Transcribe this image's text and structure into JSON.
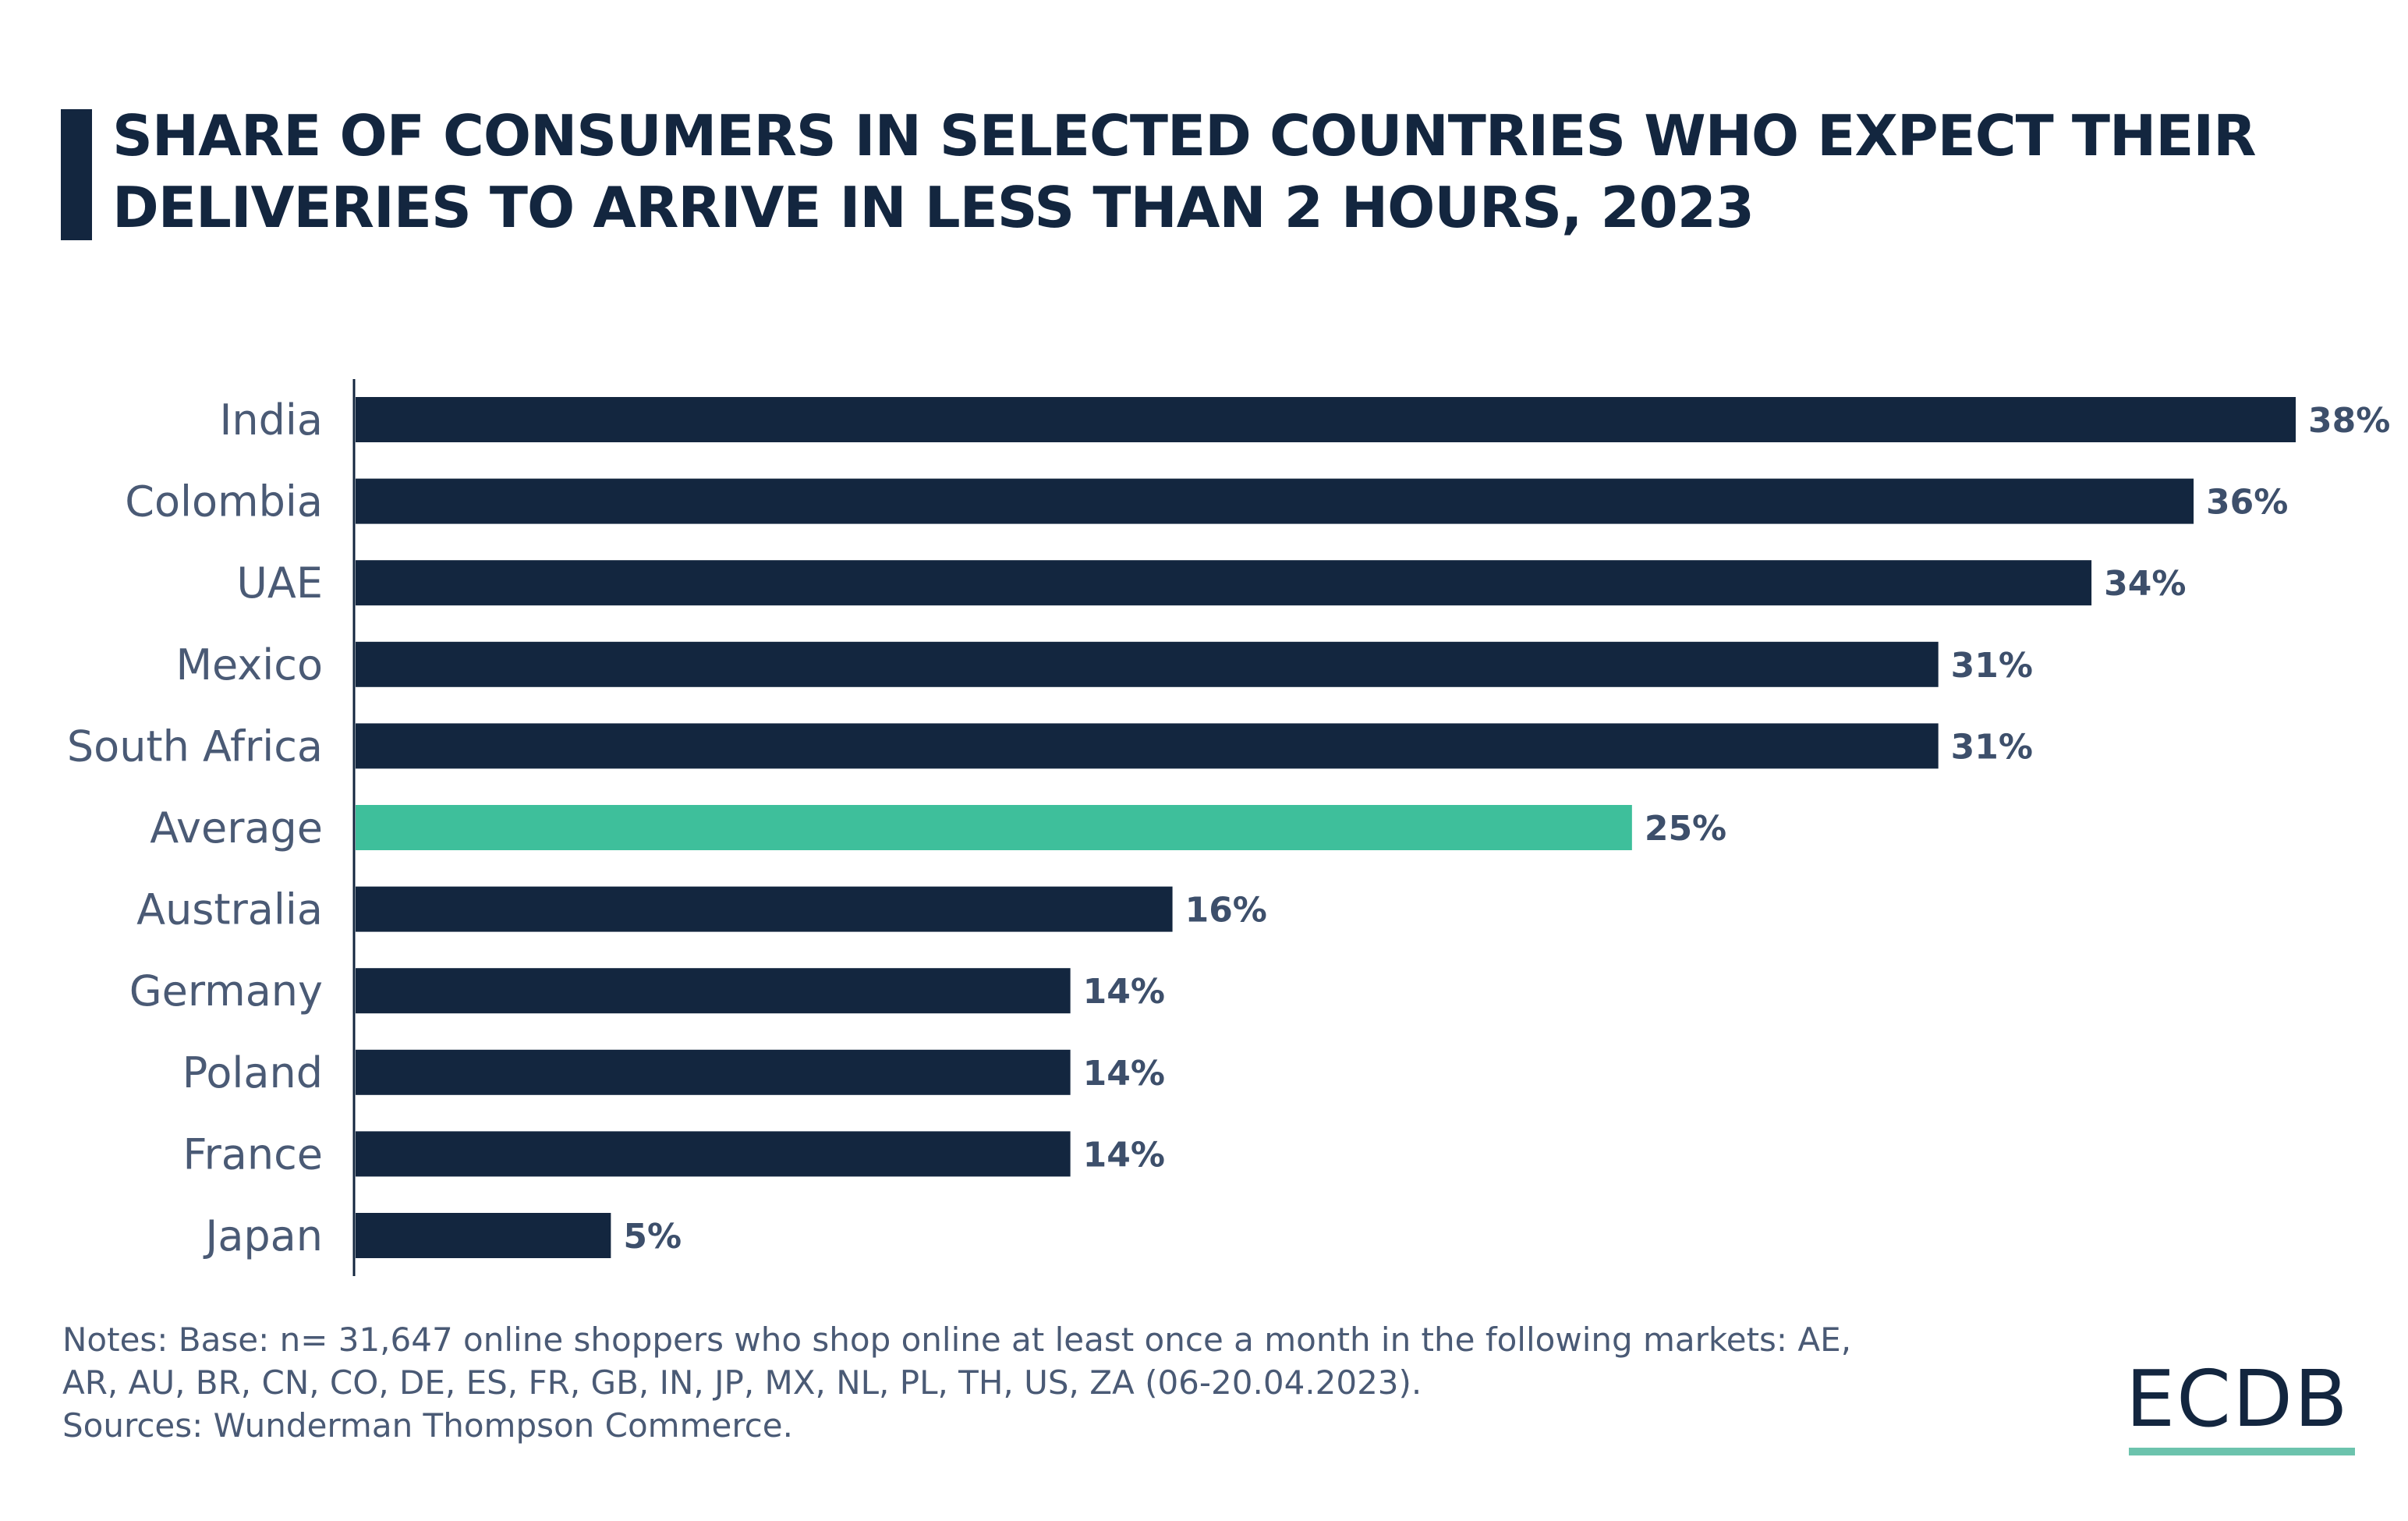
{
  "chart_data": {
    "type": "bar",
    "orientation": "horizontal",
    "title": "SHARE OF CONSUMERS IN SELECTED COUNTRIES WHO EXPECT THEIR DELIVERIES TO ARRIVE IN LESS THAN 2 HOURS, 2023",
    "categories": [
      "India",
      "Colombia",
      "UAE",
      "Mexico",
      "South Africa",
      "Average",
      "Australia",
      "Germany",
      "Poland",
      "France",
      "Japan"
    ],
    "values": [
      38,
      36,
      34,
      31,
      31,
      25,
      16,
      14,
      14,
      14,
      5
    ],
    "value_labels": [
      "38%",
      "36%",
      "34%",
      "31%",
      "31%",
      "25%",
      "16%",
      "14%",
      "14%",
      "14%",
      "5%"
    ],
    "highlight": "Average",
    "xlim": [
      0,
      38
    ],
    "grid": false,
    "colors": {
      "bar": "#13263f",
      "highlight": "#3ebf9b",
      "label": "#4a5a75",
      "value": "#3d4f6b"
    }
  },
  "notes": [
    "Notes: Base: n= 31,647 online shoppers who shop online at least once a month in the following markets: AE,",
    "AR, AU, BR, CN, CO, DE, ES, FR, GB, IN, JP, MX, NL, PL, TH, US, ZA (06-20.04.2023).",
    "Sources: Wunderman Thompson Commerce."
  ],
  "logo": {
    "text": "ECDB",
    "accent": "#6cc3ad"
  }
}
